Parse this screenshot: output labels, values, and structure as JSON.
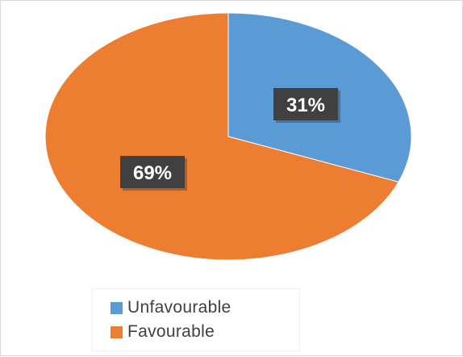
{
  "chart_data": {
    "type": "pie",
    "title": "",
    "categories": [
      "Unfavourable",
      "Favourable"
    ],
    "values": [
      31,
      69
    ],
    "value_labels": [
      "31%",
      "69%"
    ],
    "colors": [
      "#5b9bd5",
      "#ed7d31"
    ],
    "start_angle": "12 o'clock",
    "direction": "clockwise",
    "legend_position": "bottom",
    "label_style": "white bold text on dark gray box"
  },
  "legend": {
    "items": [
      {
        "label": "Unfavourable",
        "color": "#5b9bd5"
      },
      {
        "label": "Favourable",
        "color": "#ed7d31"
      }
    ]
  }
}
